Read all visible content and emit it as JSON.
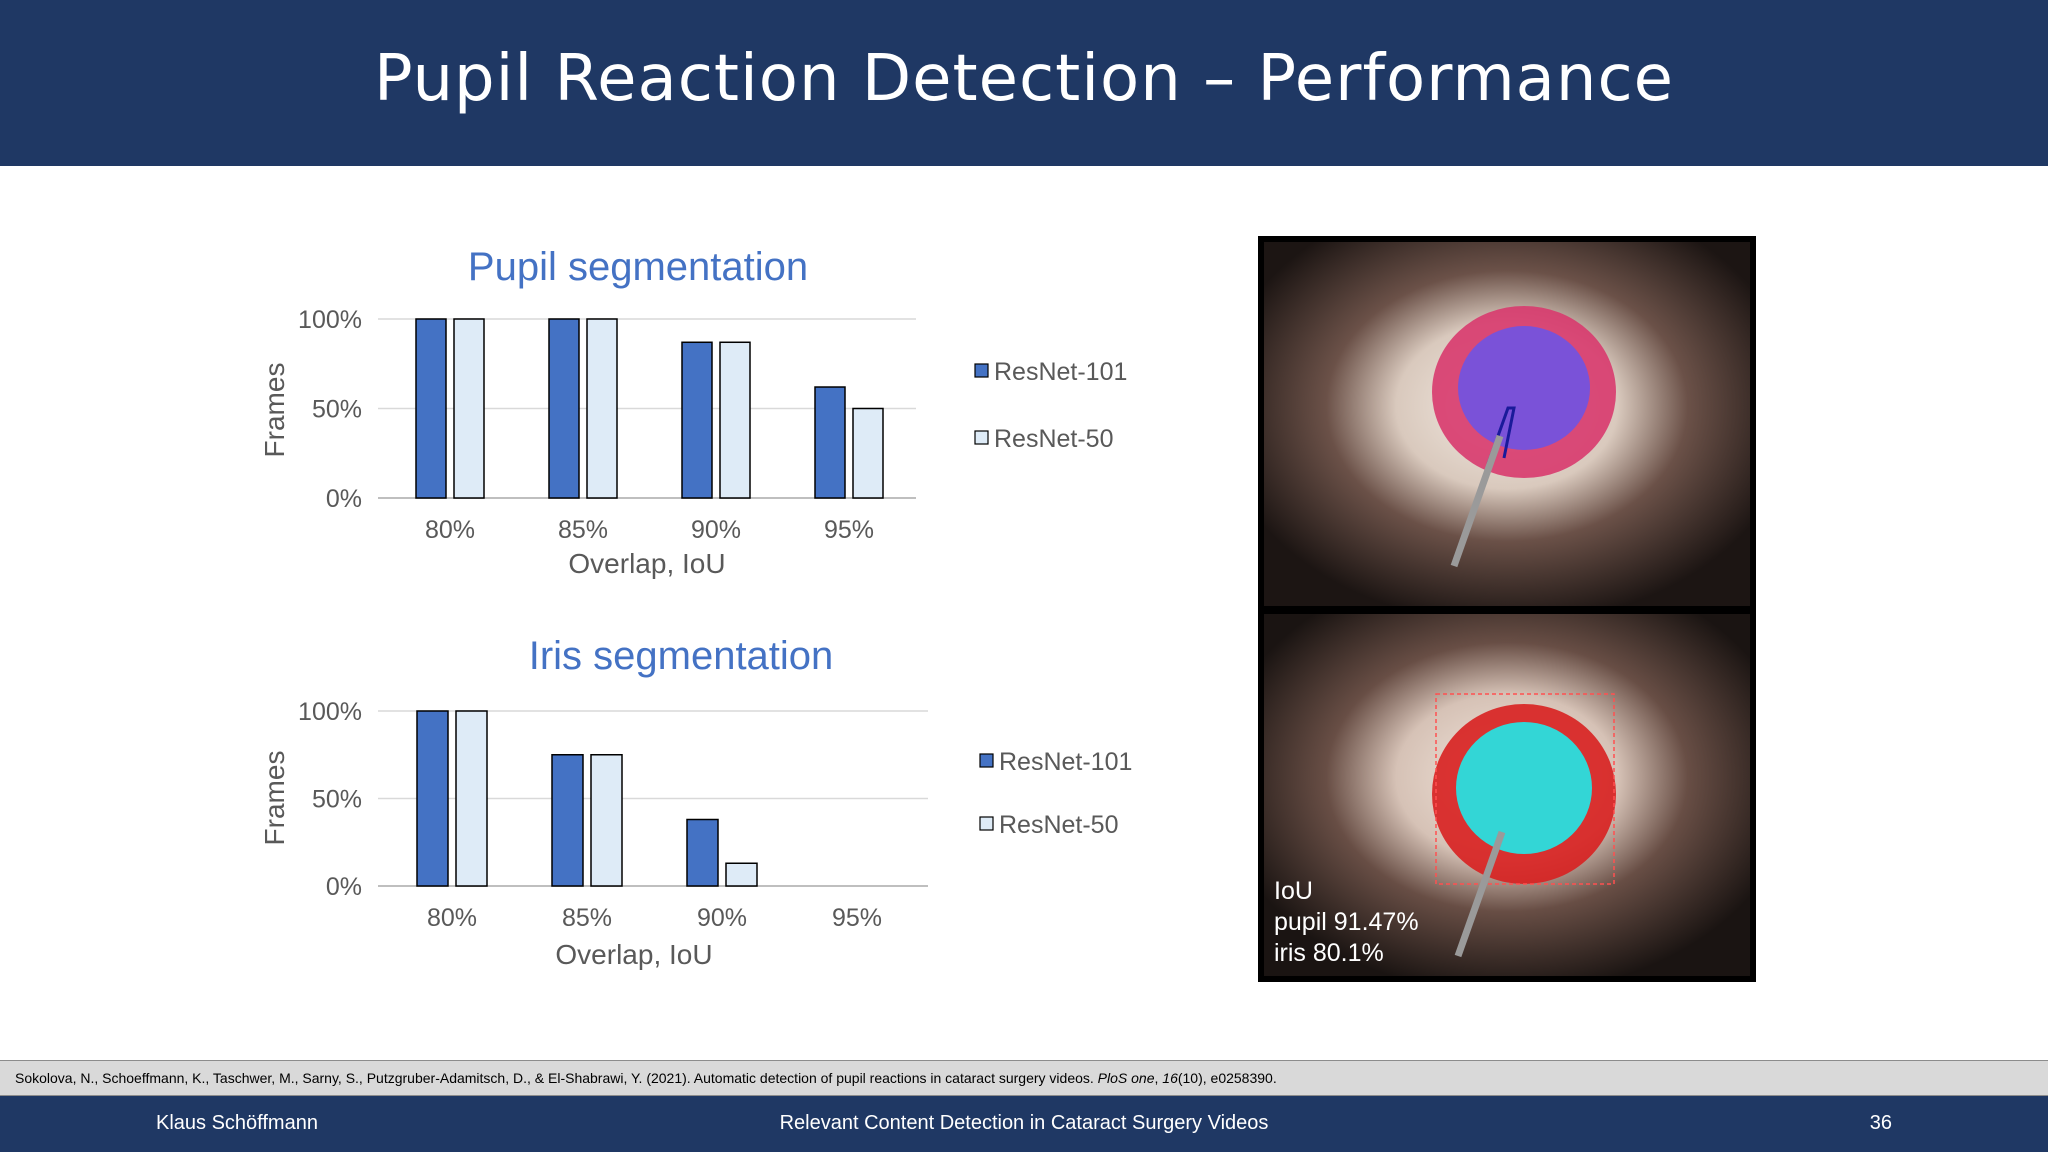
{
  "slide": {
    "title": "Pupil Reaction Detection – Performance",
    "citation": {
      "before_journal": "Sokolova, N., Schoeffmann, K., Taschwer, M., Sarny, S., Putzgruber-Adamitsch, D., & El-Shabrawi, Y. (2021). Automatic detection of pupil reactions in cataract surgery videos.",
      "journal": "PloS one",
      "volume": "16",
      "issue_pages": "(10), e0258390."
    },
    "footer": {
      "author": "Klaus Schöffmann",
      "talk_title": "Relevant Content Detection in Cataract Surgery Videos",
      "page_number": "36"
    }
  },
  "photo": {
    "iou_heading": "IoU",
    "iou_pupil": "pupil 91.47%",
    "iou_iris": "iris 80.1%"
  },
  "colors": {
    "header_bg": "#1f3864",
    "title_blue": "#4472c4",
    "resnet101": "#4472c4",
    "resnet50": "#deebf7"
  },
  "chart_data": [
    {
      "type": "bar",
      "title": "Pupil segmentation",
      "xlabel": "Overlap, IoU",
      "ylabel": "Frames",
      "categories": [
        "80%",
        "85%",
        "90%",
        "95%"
      ],
      "yticks": [
        "0%",
        "50%",
        "100%"
      ],
      "ylim": [
        0,
        100
      ],
      "grid": true,
      "legend": "right",
      "series": [
        {
          "name": "ResNet-101",
          "color": "#4472c4",
          "values": [
            100,
            100,
            87,
            62
          ]
        },
        {
          "name": "ResNet-50",
          "color": "#deebf7",
          "values": [
            100,
            100,
            87,
            50
          ]
        }
      ]
    },
    {
      "type": "bar",
      "title": "Iris segmentation",
      "xlabel": "Overlap, IoU",
      "ylabel": "Frames",
      "categories": [
        "80%",
        "85%",
        "90%",
        "95%"
      ],
      "yticks": [
        "0%",
        "50%",
        "100%"
      ],
      "ylim": [
        0,
        100
      ],
      "grid": true,
      "legend": "right",
      "series": [
        {
          "name": "ResNet-101",
          "color": "#4472c4",
          "values": [
            100,
            75,
            38,
            0
          ]
        },
        {
          "name": "ResNet-50",
          "color": "#deebf7",
          "values": [
            100,
            75,
            13,
            0
          ]
        }
      ]
    }
  ]
}
